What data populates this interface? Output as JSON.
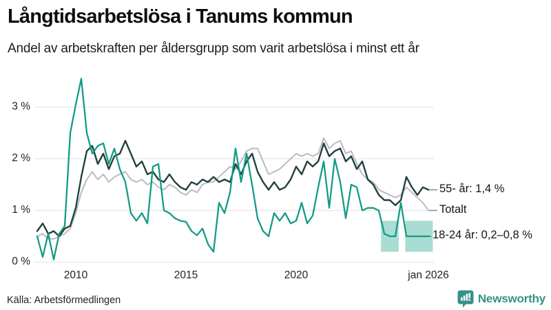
{
  "chart_data": {
    "type": "line",
    "title": "Långtidsarbetslösa i Tanums kommun",
    "subtitle": "Andel av arbetskraften per åldersgrupp som varit arbetslösa i minst ett år",
    "source": "Källa: Arbetsförmedlingen",
    "brand": "Newsworthy",
    "x_unit": "year",
    "x_start": 2008.25,
    "x_step": 0.25,
    "ylim": [
      0,
      3.6
    ],
    "grid": "horizontal",
    "legend_position": "right-end-labels",
    "yticks": [
      {
        "value": 0,
        "label": "0 %"
      },
      {
        "value": 1,
        "label": "1 %"
      },
      {
        "value": 2,
        "label": "2 %"
      },
      {
        "value": 3,
        "label": "3 %"
      }
    ],
    "xticks": [
      {
        "value": 2010,
        "label": "2010"
      },
      {
        "value": 2015,
        "label": "2015"
      },
      {
        "value": 2020,
        "label": "2020"
      },
      {
        "value": 2026,
        "label": "jan 2026"
      }
    ],
    "series": [
      {
        "name": "Totalt",
        "end_label": "Totalt",
        "color": "#bcb9c8",
        "width": 2,
        "connector_color": "#8f8d99",
        "values": [
          0.5,
          0.55,
          0.45,
          0.45,
          0.5,
          0.55,
          0.65,
          0.95,
          1.35,
          1.6,
          1.75,
          1.6,
          1.7,
          1.55,
          1.65,
          1.7,
          1.75,
          1.6,
          1.55,
          1.6,
          1.5,
          1.55,
          1.45,
          1.4,
          1.5,
          1.45,
          1.35,
          1.3,
          1.4,
          1.35,
          1.5,
          1.55,
          1.55,
          1.65,
          1.75,
          1.85,
          1.8,
          1.95,
          2.15,
          2.2,
          2.2,
          1.95,
          1.7,
          1.75,
          1.8,
          1.9,
          2.0,
          2.1,
          2.05,
          2.1,
          2.05,
          2.1,
          2.4,
          2.2,
          2.3,
          2.35,
          2.1,
          2.15,
          1.9,
          1.7,
          1.6,
          1.55,
          1.4,
          1.35,
          1.3,
          1.25,
          1.3,
          1.45,
          1.35,
          1.25,
          1.15,
          1.0
        ]
      },
      {
        "name": "55- år",
        "end_label": "55- år: 1,4 %",
        "color": "#20413b",
        "width": 2.4,
        "connector_color": "#8f8d99",
        "values": [
          0.6,
          0.75,
          0.55,
          0.6,
          0.5,
          0.65,
          0.7,
          1.05,
          1.65,
          2.15,
          2.25,
          1.9,
          2.1,
          1.8,
          2.05,
          2.1,
          2.35,
          2.1,
          1.85,
          1.95,
          1.7,
          1.75,
          1.6,
          1.55,
          1.7,
          1.55,
          1.45,
          1.4,
          1.55,
          1.5,
          1.6,
          1.55,
          1.65,
          1.55,
          1.6,
          1.55,
          1.9,
          1.7,
          1.95,
          2.1,
          1.75,
          1.55,
          1.4,
          1.55,
          1.4,
          1.45,
          1.6,
          1.85,
          1.7,
          1.95,
          1.85,
          1.95,
          2.3,
          2.05,
          2.15,
          2.2,
          1.95,
          2.05,
          1.8,
          1.95,
          1.6,
          1.5,
          1.3,
          1.2,
          1.2,
          1.1,
          1.2,
          1.65,
          1.45,
          1.3,
          1.45,
          1.4
        ]
      },
      {
        "name": "18-24 år",
        "end_label": "18-24 år: 0,2–0,8 %",
        "color": "#129b86",
        "width": 2.3,
        "connector_color": "#129b86",
        "values": [
          0.5,
          0.1,
          0.55,
          0.05,
          0.55,
          0.7,
          2.5,
          3.05,
          3.55,
          2.5,
          2.1,
          2.25,
          2.3,
          1.9,
          2.2,
          1.8,
          1.55,
          0.95,
          0.8,
          0.95,
          0.75,
          1.85,
          1.9,
          1.0,
          0.95,
          0.85,
          0.8,
          0.78,
          0.6,
          0.52,
          0.65,
          0.35,
          0.2,
          1.15,
          0.95,
          1.35,
          2.2,
          1.55,
          2.1,
          1.5,
          0.85,
          0.6,
          0.5,
          0.95,
          0.8,
          0.95,
          0.75,
          0.8,
          1.15,
          0.75,
          0.9,
          1.45,
          1.95,
          1.05,
          2.0,
          1.55,
          0.85,
          1.5,
          1.45,
          1.0,
          1.05,
          1.05,
          1.0,
          0.55,
          0.5,
          0.5,
          1.15,
          0.5,
          0.5,
          0.5,
          0.5,
          0.5
        ],
        "band": {
          "low": 0.2,
          "high": 0.8,
          "color": "#a9dcd2",
          "segments": [
            [
              2023.85,
              2024.65
            ],
            [
              2024.95,
              2026.2
            ]
          ]
        }
      }
    ]
  },
  "colors": {
    "background": "#ffffff",
    "gridline": "#e6e6e6",
    "text": "#141414",
    "brand_teal": "#35918a",
    "series_teal": "#129b86",
    "series_dark": "#20413b",
    "series_gray": "#bcb9c8",
    "band_fill": "#a9dcd2"
  }
}
